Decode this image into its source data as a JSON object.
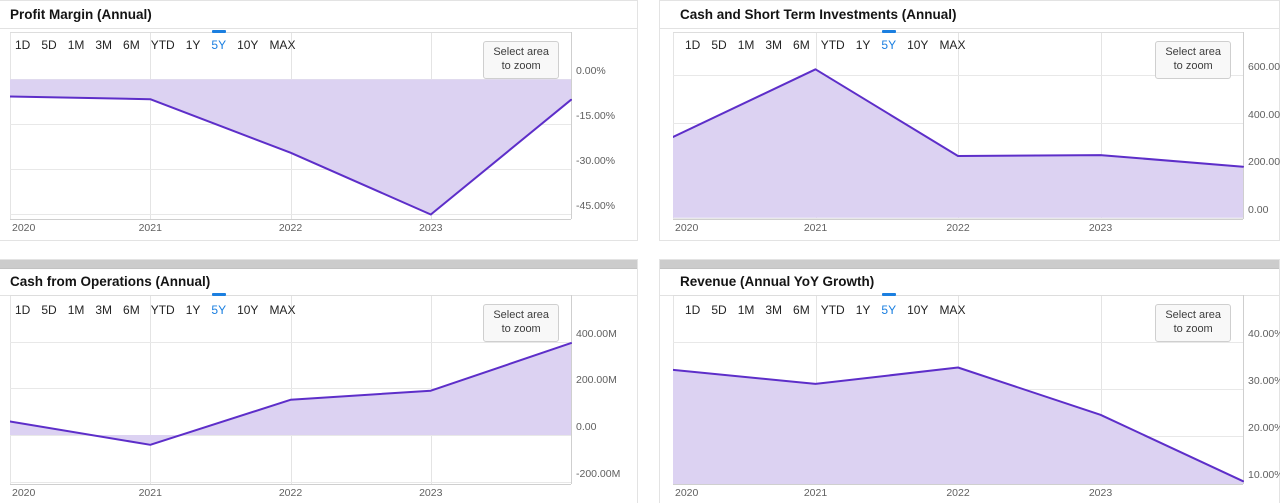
{
  "selected_range": "5Y",
  "range_buttons": [
    "1D",
    "5D",
    "1M",
    "3M",
    "6M",
    "YTD",
    "1Y",
    "5Y",
    "10Y",
    "MAX"
  ],
  "zoom_button": {
    "line1": "Select area",
    "line2": "to zoom"
  },
  "theme": {
    "line_color": "#5d2ec9",
    "fill_color": "#dcd2f2",
    "selected_range_color": "#1b7fe0",
    "axis_label_color": "#606060",
    "grid_color": "#e8e8e8",
    "border_color": "#cfcfcf"
  },
  "chart_data": [
    {
      "type": "area",
      "title": "Profit Margin (Annual)",
      "x": [
        2020,
        2021,
        2022,
        2023,
        2024
      ],
      "x_tick_labels": [
        "2020",
        "2021",
        "2022",
        "2023"
      ],
      "values": [
        -5.7,
        -6.6,
        -24.4,
        -45.0,
        -6.8
      ],
      "unit": "%",
      "ylim": [
        15.8,
        -46.5
      ],
      "baseline": 0,
      "yticks": [
        {
          "v": 0,
          "label": "0.00%"
        },
        {
          "v": -15,
          "label": "-15.00%"
        },
        {
          "v": -30,
          "label": "-30.00%"
        },
        {
          "v": -45,
          "label": "-45.00%"
        }
      ],
      "grid": true,
      "legend": "none"
    },
    {
      "type": "area",
      "title": "Cash and Short Term Investments (Annual)",
      "x": [
        2020,
        2021,
        2022,
        2023,
        2024
      ],
      "x_tick_labels": [
        "2020",
        "2021",
        "2022",
        "2023"
      ],
      "values": [
        340,
        625,
        260,
        264,
        215
      ],
      "unit": "M",
      "ylim": [
        782,
        -5
      ],
      "baseline": 0,
      "yticks": [
        {
          "v": 600,
          "label": "600.00M"
        },
        {
          "v": 400,
          "label": "400.00M"
        },
        {
          "v": 200,
          "label": "200.00M"
        },
        {
          "v": 0,
          "label": "0.00"
        }
      ],
      "grid": true,
      "legend": "none"
    },
    {
      "type": "area",
      "title": "Cash from Operations (Annual)",
      "x": [
        2020,
        2021,
        2022,
        2023,
        2024
      ],
      "x_tick_labels": [
        "2020",
        "2021",
        "2022",
        "2023"
      ],
      "values": [
        58,
        -42,
        151,
        190,
        394
      ],
      "unit": "M",
      "ylim": [
        600,
        -210
      ],
      "baseline": 0,
      "yticks": [
        {
          "v": 400,
          "label": "400.00M"
        },
        {
          "v": 200,
          "label": "200.00M"
        },
        {
          "v": 0,
          "label": "0.00"
        },
        {
          "v": -200,
          "label": "-200.00M"
        }
      ],
      "grid": true,
      "legend": "none"
    },
    {
      "type": "area",
      "title": "Revenue (Annual YoY Growth)",
      "x": [
        2020,
        2021,
        2022,
        2023,
        2024
      ],
      "x_tick_labels": [
        "2020",
        "2021",
        "2022",
        "2023"
      ],
      "values": [
        34.1,
        31.1,
        34.6,
        24.5,
        10.3
      ],
      "unit": "%",
      "ylim": [
        50.1,
        9.7
      ],
      "baseline": 0,
      "yticks": [
        {
          "v": 40,
          "label": "40.00%"
        },
        {
          "v": 30,
          "label": "30.00%"
        },
        {
          "v": 20,
          "label": "20.00%"
        },
        {
          "v": 10,
          "label": "10.00%"
        }
      ],
      "grid": true,
      "legend": "none"
    }
  ]
}
